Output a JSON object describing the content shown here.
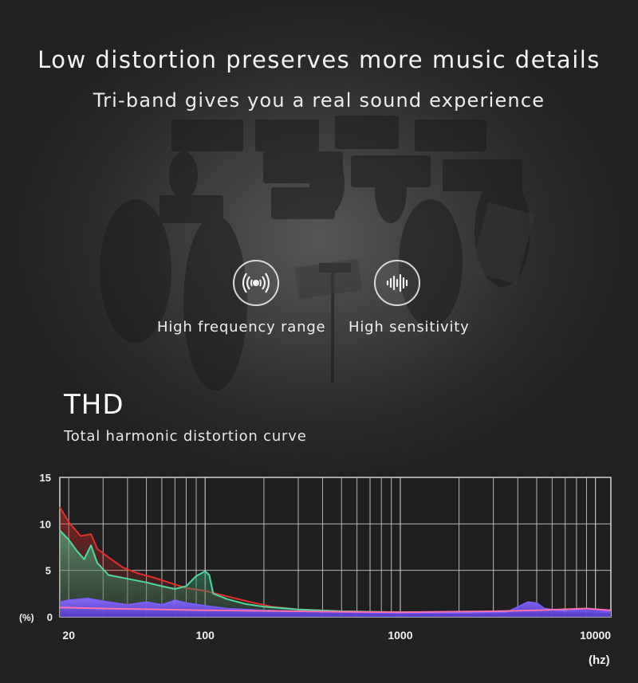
{
  "headline": "Low distortion preserves more music details",
  "subline": "Tri-band gives you a real sound experience",
  "features": [
    {
      "icon": "sound-wave-circle-icon",
      "label": "High frequency range"
    },
    {
      "icon": "equalizer-bars-icon",
      "label": "High sensitivity"
    }
  ],
  "thd": {
    "title": "THD",
    "subtitle": "Total harmonic distortion curve"
  },
  "chart_data": {
    "type": "area",
    "title": "",
    "xlabel": "(hz)",
    "ylabel": "(%)",
    "x_scale": "log",
    "xlim": [
      18,
      12000
    ],
    "ylim": [
      0,
      15
    ],
    "y_ticks": [
      "15",
      "10",
      "5",
      "0"
    ],
    "y_tick_values": [
      15,
      10,
      5,
      0
    ],
    "x_ticks": [
      "20",
      "100",
      "1000",
      "10000"
    ],
    "x_tick_values": [
      20,
      100,
      1000,
      10000
    ],
    "grid": true,
    "series": [
      {
        "color": "#e0302a",
        "style": "line",
        "points": [
          [
            18,
            11.8
          ],
          [
            20,
            10.2
          ],
          [
            23,
            8.7
          ],
          [
            26,
            8.9
          ],
          [
            28,
            7.3
          ],
          [
            32,
            6.4
          ],
          [
            38,
            5.3
          ],
          [
            45,
            4.7
          ],
          [
            55,
            4.2
          ],
          [
            65,
            3.7
          ],
          [
            80,
            3.1
          ],
          [
            100,
            2.8
          ],
          [
            130,
            2.2
          ],
          [
            170,
            1.6
          ],
          [
            220,
            1.1
          ],
          [
            300,
            0.8
          ],
          [
            500,
            0.6
          ],
          [
            1000,
            0.5
          ],
          [
            3000,
            0.5
          ],
          [
            5000,
            0.5
          ],
          [
            8000,
            0.7
          ],
          [
            12000,
            0.6
          ]
        ]
      },
      {
        "color": "#4fd8a0",
        "style": "area",
        "points": [
          [
            18,
            9.3
          ],
          [
            20,
            8.3
          ],
          [
            22,
            7.1
          ],
          [
            24,
            6.2
          ],
          [
            26,
            7.7
          ],
          [
            28,
            5.8
          ],
          [
            32,
            4.5
          ],
          [
            40,
            4.1
          ],
          [
            50,
            3.7
          ],
          [
            60,
            3.3
          ],
          [
            70,
            3.0
          ],
          [
            80,
            3.3
          ],
          [
            90,
            4.4
          ],
          [
            100,
            4.9
          ],
          [
            105,
            4.5
          ],
          [
            110,
            2.5
          ],
          [
            130,
            1.9
          ],
          [
            160,
            1.4
          ],
          [
            200,
            1.1
          ],
          [
            300,
            0.8
          ],
          [
            500,
            0.6
          ],
          [
            1000,
            0.5
          ],
          [
            2000,
            0.5
          ],
          [
            3500,
            0.6
          ],
          [
            5000,
            0.7
          ],
          [
            8000,
            0.6
          ],
          [
            12000,
            0.5
          ]
        ]
      },
      {
        "color": "#7b5cff",
        "style": "area",
        "points": [
          [
            18,
            1.6
          ],
          [
            20,
            1.8
          ],
          [
            25,
            2.0
          ],
          [
            30,
            1.7
          ],
          [
            40,
            1.3
          ],
          [
            50,
            1.6
          ],
          [
            60,
            1.3
          ],
          [
            70,
            1.8
          ],
          [
            80,
            1.5
          ],
          [
            100,
            1.2
          ],
          [
            130,
            0.9
          ],
          [
            200,
            0.7
          ],
          [
            500,
            0.5
          ],
          [
            1000,
            0.4
          ],
          [
            2000,
            0.4
          ],
          [
            3500,
            0.5
          ],
          [
            4500,
            1.6
          ],
          [
            5000,
            1.5
          ],
          [
            5500,
            0.9
          ],
          [
            7000,
            0.6
          ],
          [
            9000,
            0.9
          ],
          [
            10000,
            0.8
          ],
          [
            12000,
            0.6
          ]
        ]
      },
      {
        "color": "#ff6fb0",
        "style": "line",
        "points": [
          [
            18,
            1.0
          ],
          [
            30,
            0.9
          ],
          [
            60,
            0.8
          ],
          [
            100,
            0.7
          ],
          [
            300,
            0.6
          ],
          [
            1000,
            0.5
          ],
          [
            3000,
            0.6
          ],
          [
            5000,
            0.7
          ],
          [
            9000,
            0.9
          ],
          [
            12000,
            0.7
          ]
        ]
      }
    ]
  }
}
